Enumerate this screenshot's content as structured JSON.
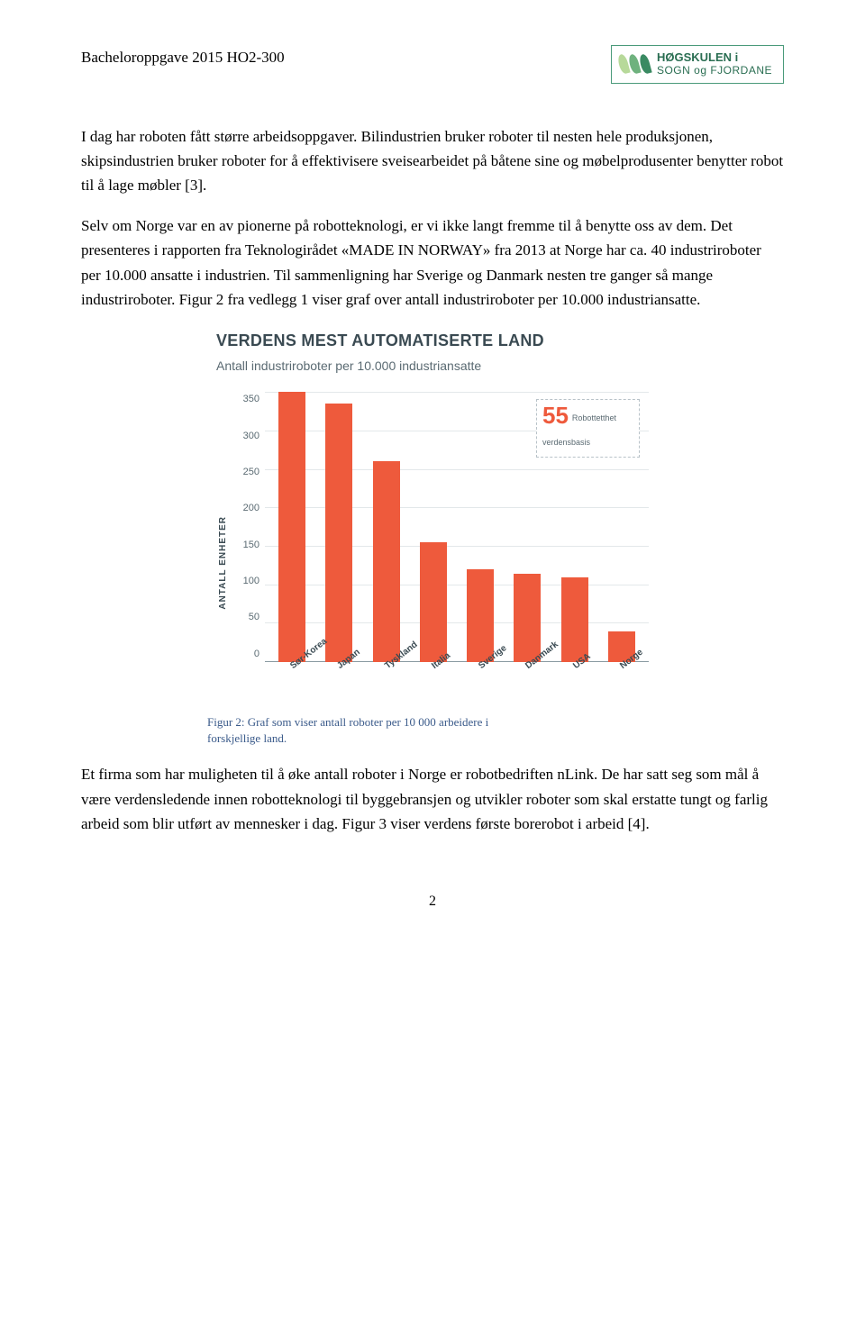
{
  "header": {
    "doc_title": "Bacheloroppgave 2015 HO2-300",
    "logo": {
      "line1": "HØGSKULEN i",
      "line2": "SOGN og FJORDANE",
      "leaf_colors": [
        "#b7d99a",
        "#6fb27e",
        "#3a8a62"
      ]
    }
  },
  "paragraphs": {
    "p1": "I dag har roboten fått større arbeidsoppgaver. Bilindustrien bruker roboter til nesten hele produksjonen, skipsindustrien bruker roboter for å effektivisere sveisearbeidet på båtene sine og møbelprodusenter benytter robot til å lage møbler [3].",
    "p2": "Selv om Norge var en av pionerne på robotteknologi, er vi ikke langt fremme til å benytte oss av dem. Det presenteres i rapporten fra Teknologirådet «MADE IN NORWAY» fra 2013 at Norge har ca. 40 industriroboter per 10.000 ansatte i industrien. Til sammenligning har Sverige og Danmark nesten tre ganger så mange industriroboter. Figur 2 fra vedlegg 1 viser graf over antall industriroboter per 10.000 industriansatte.",
    "p3": "Et firma som har muligheten til å øke antall roboter i Norge er robotbedriften nLink. De har satt seg som mål å være verdensledende innen robotteknologi til byggebransjen og utvikler roboter som skal erstatte tungt og farlig arbeid som blir utført av mennesker i dag. Figur 3 viser verdens første borerobot i arbeid [4]."
  },
  "chart": {
    "title": "VERDENS MEST AUTOMATISERTE LAND",
    "subtitle": "Antall industriroboter per 10.000 industriansatte",
    "y_axis_label": "ANTALL ENHETER",
    "ylim": [
      0,
      350
    ],
    "ytick_step": 50,
    "yticks": [
      "350",
      "300",
      "250",
      "200",
      "150",
      "100",
      "50",
      "0"
    ],
    "categories": [
      "Sør-Korea",
      "Japan",
      "Tyskland",
      "Italia",
      "Sverige",
      "Danmark",
      "USA",
      "Norge"
    ],
    "values": [
      350,
      335,
      260,
      155,
      120,
      115,
      110,
      40
    ],
    "bar_color": "#ee5a3c",
    "grid_color": "#e3e8ea",
    "baseline_color": "#8a9aa2",
    "background_color": "#ffffff",
    "title_color": "#3a4a52",
    "subtitle_color": "#5a6a72",
    "title_fontsize": 18,
    "subtitle_fontsize": 14,
    "label_fontsize": 10,
    "callout": {
      "value": "55",
      "label": "Robottetthet verdensbasis",
      "value_color": "#ee5a3c"
    }
  },
  "figure_caption": "Figur 2: Graf som viser antall roboter per 10 000 arbeidere i forskjellige land.",
  "page_number": "2"
}
